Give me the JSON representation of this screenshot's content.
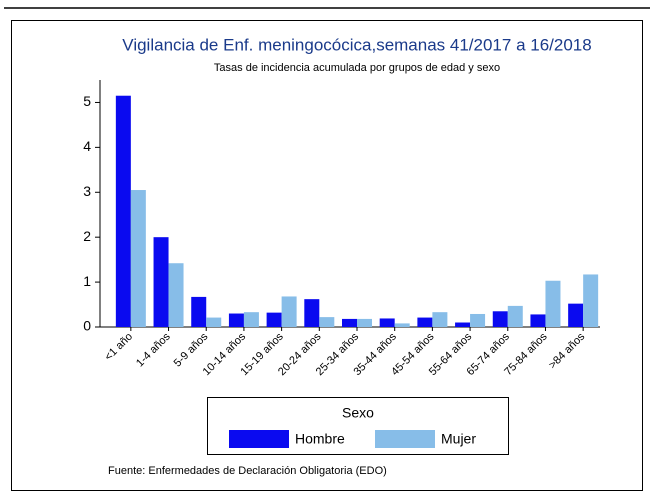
{
  "chart_data": {
    "type": "bar",
    "title": "Vigilancia de Enf. meningocócica,semanas 41/2017 a 16/2018",
    "subtitle": "Tasas de incidencia acumulada por grupos de edad y sexo",
    "categories": [
      "<1 año",
      "1-4 años",
      "5-9 años",
      "10-14 años",
      "15-19 años",
      "20-24 años",
      "25-34 años",
      "35-44 años",
      "45-54 años",
      "55-64 años",
      "65-74 años",
      "75-84 años",
      ">84 años"
    ],
    "series": [
      {
        "name": "Hombre",
        "color": "#0a0af0",
        "values": [
          5.15,
          2.0,
          0.67,
          0.3,
          0.32,
          0.62,
          0.18,
          0.19,
          0.21,
          0.1,
          0.35,
          0.28,
          0.52
        ]
      },
      {
        "name": "Mujer",
        "color": "#87bde8",
        "values": [
          3.05,
          1.42,
          0.21,
          0.33,
          0.68,
          0.22,
          0.18,
          0.08,
          0.33,
          0.29,
          0.47,
          1.03,
          1.17
        ]
      }
    ],
    "ylim": [
      0,
      5.5
    ],
    "yticks": [
      0,
      1,
      2,
      3,
      4,
      5
    ],
    "legend_title": "Sexo",
    "source": "Fuente: Enfermedades de Declaración Obligatoria (EDO)"
  }
}
